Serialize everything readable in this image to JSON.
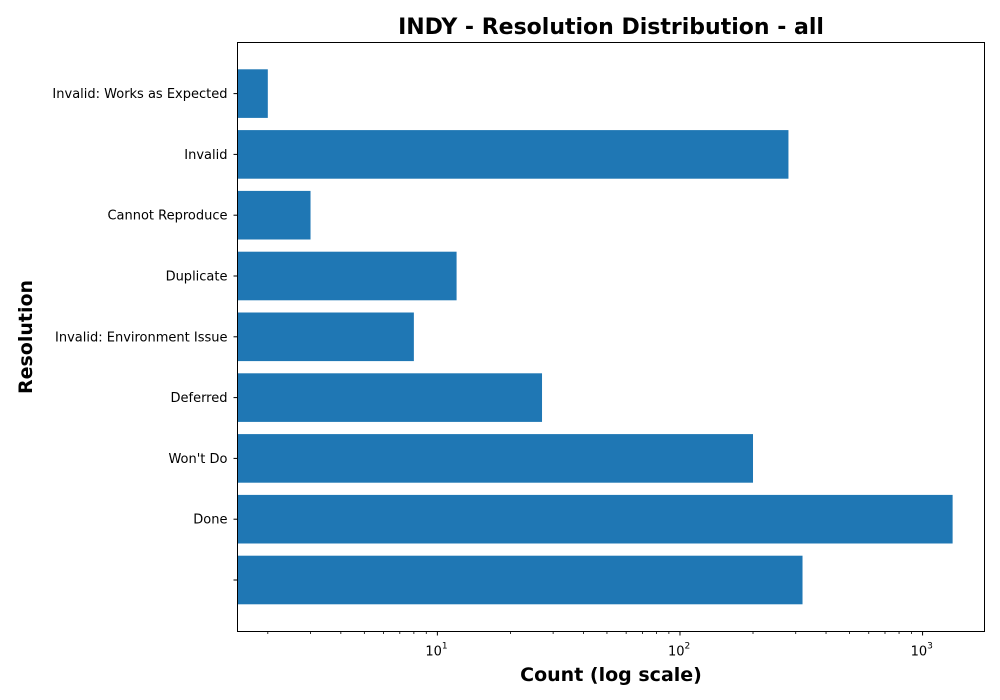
{
  "chart_data": {
    "type": "bar",
    "orientation": "horizontal",
    "title": "INDY - Resolution Distribution - all",
    "xlabel": "Count (log scale)",
    "ylabel": "Resolution",
    "x_scale": "log",
    "xlim": [
      1.5,
      1800
    ],
    "x_ticks": [
      {
        "base": "10",
        "exp": "1",
        "value": 10
      },
      {
        "base": "10",
        "exp": "2",
        "value": 100
      },
      {
        "base": "10",
        "exp": "3",
        "value": 1000
      }
    ],
    "categories": [
      "",
      "Done",
      "Won't Do",
      "Deferred",
      "Invalid: Environment Issue",
      "Duplicate",
      "Cannot Reproduce",
      "Invalid",
      "Invalid: Works as Expected"
    ],
    "values": [
      320,
      1330,
      200,
      27,
      8,
      12,
      3,
      280,
      2
    ],
    "bar_color": "#1f77b4",
    "grid": false
  }
}
